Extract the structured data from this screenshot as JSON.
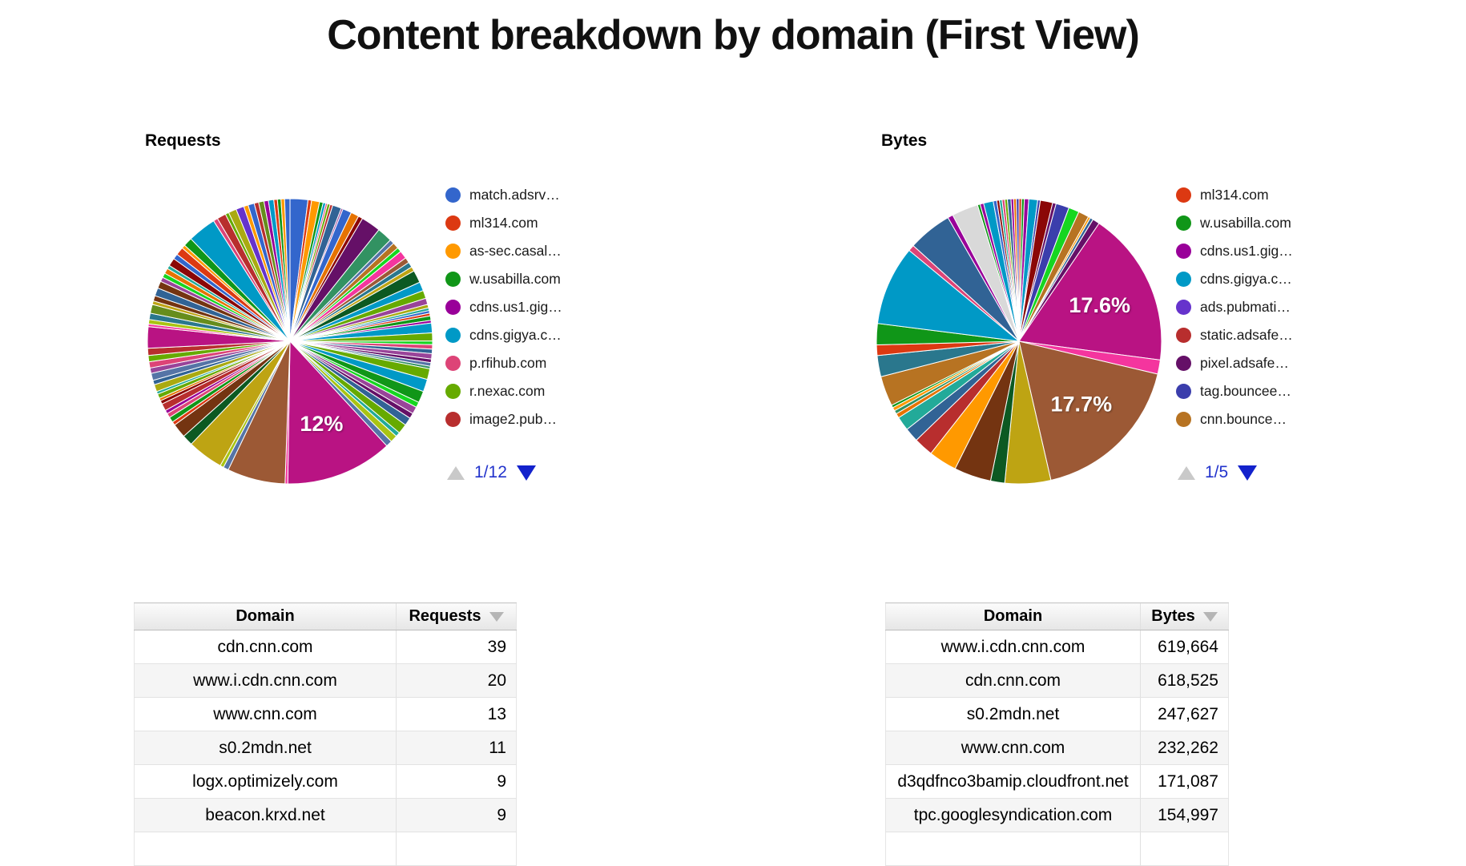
{
  "title": "Content breakdown by domain (First View)",
  "charts": [
    {
      "heading": "Requests",
      "page": "1/12",
      "legend": [
        {
          "label": "match.adsrv…",
          "color": "#3366cc"
        },
        {
          "label": "ml314.com",
          "color": "#dc3912"
        },
        {
          "label": "as-sec.casal…",
          "color": "#ff9900"
        },
        {
          "label": "w.usabilla.com",
          "color": "#109618"
        },
        {
          "label": "cdns.us1.gig…",
          "color": "#990099"
        },
        {
          "label": "cdns.gigya.c…",
          "color": "#0099c6"
        },
        {
          "label": "p.rfihub.com",
          "color": "#dd4477"
        },
        {
          "label": "r.nexac.com",
          "color": "#66aa00"
        },
        {
          "label": "image2.pub…",
          "color": "#b82e2e"
        }
      ],
      "slices": [
        {
          "c": "#3366cc",
          "v": 2.0
        },
        {
          "c": "#dc3912",
          "v": 0.4
        },
        {
          "c": "#ff9900",
          "v": 0.9
        },
        {
          "c": "#109618",
          "v": 0.4
        },
        {
          "c": "#0099c6",
          "v": 0.3
        },
        {
          "c": "#dd4477",
          "v": 0.2
        },
        {
          "c": "#66aa00",
          "v": 0.3
        },
        {
          "c": "#b82e2e",
          "v": 0.3
        },
        {
          "c": "#316395",
          "v": 1.0
        },
        {
          "c": "#994499",
          "v": 0.2
        },
        {
          "c": "#3366cc",
          "v": 1.0
        },
        {
          "c": "#e67300",
          "v": 0.9
        },
        {
          "c": "#8b0707",
          "v": 0.5
        },
        {
          "c": "#651067",
          "v": 2.2
        },
        {
          "c": "#329262",
          "v": 1.7
        },
        {
          "c": "#5574a6",
          "v": 0.5
        },
        {
          "c": "#b77322",
          "v": 0.7
        },
        {
          "c": "#16d620",
          "v": 0.5
        },
        {
          "c": "#f4359e",
          "v": 0.9
        },
        {
          "c": "#9c5935",
          "v": 0.6
        },
        {
          "c": "#2a778d",
          "v": 0.6
        },
        {
          "c": "#bea413",
          "v": 0.5
        },
        {
          "c": "#0c5922",
          "v": 1.4
        },
        {
          "c": "#0099c6",
          "v": 1.0
        },
        {
          "c": "#66aa00",
          "v": 0.9
        },
        {
          "c": "#994499",
          "v": 0.7
        },
        {
          "c": "#aaaa11",
          "v": 0.4
        },
        {
          "c": "#22aa99",
          "v": 0.3
        },
        {
          "c": "#3366cc",
          "v": 0.3
        },
        {
          "c": "#dc3912",
          "v": 0.3
        },
        {
          "c": "#109618",
          "v": 0.5
        },
        {
          "c": "#990099",
          "v": 0.3
        },
        {
          "c": "#0099c6",
          "v": 1.1
        },
        {
          "c": "#66aa00",
          "v": 0.9
        },
        {
          "c": "#16d620",
          "v": 0.4
        },
        {
          "c": "#dd4477",
          "v": 0.5
        },
        {
          "c": "#316395",
          "v": 0.5
        },
        {
          "c": "#994499",
          "v": 0.6
        },
        {
          "c": "#651067",
          "v": 0.4
        },
        {
          "c": "#5574a6",
          "v": 0.4
        },
        {
          "c": "#329262",
          "v": 0.3
        },
        {
          "c": "#66aa00",
          "v": 1.2
        },
        {
          "c": "#0099c6",
          "v": 1.4
        },
        {
          "c": "#109618",
          "v": 1.3
        },
        {
          "c": "#16d620",
          "v": 0.6
        },
        {
          "c": "#994499",
          "v": 0.8
        },
        {
          "c": "#651067",
          "v": 0.6
        },
        {
          "c": "#316395",
          "v": 0.9
        },
        {
          "c": "#66aa00",
          "v": 1.1
        },
        {
          "c": "#22aa99",
          "v": 0.5
        },
        {
          "c": "#a9c413",
          "v": 0.8
        },
        {
          "c": "#5574a6",
          "v": 0.7
        },
        {
          "c": "#b91383",
          "v": 12.0,
          "t": "12%"
        },
        {
          "c": "#f4359e",
          "v": 0.3
        },
        {
          "c": "#9c5935",
          "v": 6.5
        },
        {
          "c": "#5574a6",
          "v": 0.6
        },
        {
          "c": "#a9c413",
          "v": 0.4
        },
        {
          "c": "#bea413",
          "v": 4.0
        },
        {
          "c": "#0c5922",
          "v": 1.2
        },
        {
          "c": "#743411",
          "v": 1.6
        },
        {
          "c": "#dc3912",
          "v": 0.4
        },
        {
          "c": "#109618",
          "v": 0.6
        },
        {
          "c": "#dd4477",
          "v": 0.5
        },
        {
          "c": "#990099",
          "v": 0.4
        },
        {
          "c": "#b82e2e",
          "v": 0.8
        },
        {
          "c": "#8b0707",
          "v": 0.4
        },
        {
          "c": "#e67300",
          "v": 0.3
        },
        {
          "c": "#66aa00",
          "v": 0.5
        },
        {
          "c": "#22aa99",
          "v": 0.3
        },
        {
          "c": "#aaaa11",
          "v": 0.8
        },
        {
          "c": "#316395",
          "v": 0.5
        },
        {
          "c": "#5574a6",
          "v": 0.8
        },
        {
          "c": "#994499",
          "v": 0.6
        },
        {
          "c": "#dd4477",
          "v": 0.7
        },
        {
          "c": "#66aa00",
          "v": 0.7
        },
        {
          "c": "#b82e2e",
          "v": 0.8
        },
        {
          "c": "#b91383",
          "v": 2.4
        },
        {
          "c": "#f4359e",
          "v": 0.3
        },
        {
          "c": "#a9c413",
          "v": 0.5
        },
        {
          "c": "#2a778d",
          "v": 0.7
        },
        {
          "c": "#668d1c",
          "v": 1.0
        },
        {
          "c": "#bea413",
          "v": 0.4
        },
        {
          "c": "#743411",
          "v": 0.6
        },
        {
          "c": "#316395",
          "v": 0.9
        },
        {
          "c": "#743411",
          "v": 0.8
        },
        {
          "c": "#994499",
          "v": 0.5
        },
        {
          "c": "#16d620",
          "v": 0.5
        },
        {
          "c": "#e67300",
          "v": 0.6
        },
        {
          "c": "#22aa99",
          "v": 0.4
        },
        {
          "c": "#8b0707",
          "v": 0.9
        },
        {
          "c": "#3366cc",
          "v": 0.6
        },
        {
          "c": "#dc3912",
          "v": 0.9
        },
        {
          "c": "#ff9900",
          "v": 0.4
        },
        {
          "c": "#109618",
          "v": 1.0
        },
        {
          "c": "#0099c6",
          "v": 3.2
        },
        {
          "c": "#dd4477",
          "v": 0.5
        },
        {
          "c": "#b82e2e",
          "v": 1.0
        },
        {
          "c": "#66aa00",
          "v": 0.4
        },
        {
          "c": "#aaaa11",
          "v": 0.9
        },
        {
          "c": "#6633cc",
          "v": 0.9
        },
        {
          "c": "#ff9900",
          "v": 0.5
        },
        {
          "c": "#3366cc",
          "v": 0.7
        },
        {
          "c": "#b82e2e",
          "v": 0.5
        },
        {
          "c": "#668d1c",
          "v": 0.6
        },
        {
          "c": "#990099",
          "v": 0.5
        },
        {
          "c": "#0099c6",
          "v": 0.6
        },
        {
          "c": "#dc3912",
          "v": 0.4
        },
        {
          "c": "#109618",
          "v": 0.4
        },
        {
          "c": "#ff9900",
          "v": 0.4
        },
        {
          "c": "#3366cc",
          "v": 0.6
        }
      ]
    },
    {
      "heading": "Bytes",
      "page": "1/5",
      "legend": [
        {
          "label": "ml314.com",
          "color": "#dc3912"
        },
        {
          "label": "w.usabilla.com",
          "color": "#109618"
        },
        {
          "label": "cdns.us1.gig…",
          "color": "#990099"
        },
        {
          "label": "cdns.gigya.c…",
          "color": "#0099c6"
        },
        {
          "label": "ads.pubmati…",
          "color": "#6633cc"
        },
        {
          "label": "static.adsafe…",
          "color": "#b82e2e"
        },
        {
          "label": "pixel.adsafe…",
          "color": "#651067"
        },
        {
          "label": "tag.bouncee…",
          "color": "#3b3eac"
        },
        {
          "label": "cnn.bounce…",
          "color": "#b77322"
        }
      ],
      "slices": [
        {
          "c": "#dc3912",
          "v": 0.3
        },
        {
          "c": "#109618",
          "v": 0.3
        },
        {
          "c": "#990099",
          "v": 0.5
        },
        {
          "c": "#0099c6",
          "v": 1.0
        },
        {
          "c": "#3b3eac",
          "v": 0.3
        },
        {
          "c": "#8b0707",
          "v": 1.4
        },
        {
          "c": "#651067",
          "v": 0.4
        },
        {
          "c": "#3b3eac",
          "v": 1.5
        },
        {
          "c": "#16d620",
          "v": 1.2
        },
        {
          "c": "#b77322",
          "v": 1.2
        },
        {
          "c": "#ff9900",
          "v": 0.25
        },
        {
          "c": "#316395",
          "v": 0.35
        },
        {
          "c": "#651067",
          "v": 0.8
        },
        {
          "c": "#b91383",
          "v": 17.6,
          "t": "17.6%"
        },
        {
          "c": "#f4359e",
          "v": 1.6
        },
        {
          "c": "#9c5935",
          "v": 17.7,
          "t": "17.7%"
        },
        {
          "c": "#bea413",
          "v": 5.2
        },
        {
          "c": "#0c5922",
          "v": 1.6
        },
        {
          "c": "#743411",
          "v": 4.2
        },
        {
          "c": "#ff9900",
          "v": 3.2
        },
        {
          "c": "#b82e2e",
          "v": 2.2
        },
        {
          "c": "#316395",
          "v": 1.6
        },
        {
          "c": "#22aa99",
          "v": 1.6
        },
        {
          "c": "#e67300",
          "v": 0.5
        },
        {
          "c": "#329262",
          "v": 0.4
        },
        {
          "c": "#ff9900",
          "v": 0.4
        },
        {
          "c": "#109618",
          "v": 0.3
        },
        {
          "c": "#b77322",
          "v": 3.4
        },
        {
          "c": "#2a778d",
          "v": 2.4
        },
        {
          "c": "#dc3912",
          "v": 1.2
        },
        {
          "c": "#109618",
          "v": 2.4
        },
        {
          "c": "#0099c6",
          "v": 9.0
        },
        {
          "c": "#dd4477",
          "v": 0.7
        },
        {
          "c": "#316395",
          "v": 5.0
        },
        {
          "c": "#990099",
          "v": 0.6
        },
        {
          "c": "#d9d9d9",
          "v": 3.0
        },
        {
          "c": "#109618",
          "v": 0.3
        },
        {
          "c": "#990099",
          "v": 0.4
        },
        {
          "c": "#0099c6",
          "v": 1.1
        },
        {
          "c": "#3366cc",
          "v": 0.4
        },
        {
          "c": "#8b0707",
          "v": 0.3
        },
        {
          "c": "#22aa99",
          "v": 0.3
        },
        {
          "c": "#dd4477",
          "v": 0.3
        },
        {
          "c": "#66aa00",
          "v": 0.3
        },
        {
          "c": "#316395",
          "v": 0.4
        },
        {
          "c": "#990099",
          "v": 0.3
        },
        {
          "c": "#e67300",
          "v": 0.3
        },
        {
          "c": "#3b3eac",
          "v": 0.3
        }
      ]
    }
  ],
  "tables": [
    {
      "headers": {
        "domain": "Domain",
        "value": "Requests"
      },
      "rows": [
        {
          "domain": "cdn.cnn.com",
          "value": "39"
        },
        {
          "domain": "www.i.cdn.cnn.com",
          "value": "20"
        },
        {
          "domain": "www.cnn.com",
          "value": "13"
        },
        {
          "domain": "s0.2mdn.net",
          "value": "11"
        },
        {
          "domain": "logx.optimizely.com",
          "value": "9"
        },
        {
          "domain": "beacon.krxd.net",
          "value": "9"
        }
      ]
    },
    {
      "headers": {
        "domain": "Domain",
        "value": "Bytes"
      },
      "rows": [
        {
          "domain": "www.i.cdn.cnn.com",
          "value": "619,664"
        },
        {
          "domain": "cdn.cnn.com",
          "value": "618,525"
        },
        {
          "domain": "s0.2mdn.net",
          "value": "247,627"
        },
        {
          "domain": "www.cnn.com",
          "value": "232,262"
        },
        {
          "domain": "d3qdfnco3bamip.cloudfront.net",
          "value": "171,087"
        },
        {
          "domain": "tpc.googlesyndication.com",
          "value": "154,997"
        }
      ]
    }
  ],
  "chart_data": [
    {
      "type": "pie",
      "title": "Requests",
      "legend_position": "right",
      "legend_visible_entries": [
        "match.adsrv…",
        "ml314.com",
        "as-sec.casal…",
        "w.usabilla.com",
        "cdns.us1.gig…",
        "cdns.gigya.c…",
        "p.rfihub.com",
        "r.nexac.com",
        "image2.pub…"
      ],
      "legend_page": "1/12",
      "labeled_slices": [
        {
          "label": "12%",
          "value_pct": 12,
          "color": "#b91383"
        }
      ],
      "note": "many thin unlabeled slices; only 12% slice labeled"
    },
    {
      "type": "pie",
      "title": "Bytes",
      "legend_position": "right",
      "legend_visible_entries": [
        "ml314.com",
        "w.usabilla.com",
        "cdns.us1.gig…",
        "cdns.gigya.c…",
        "ads.pubmati…",
        "static.adsafe…",
        "pixel.adsafe…",
        "tag.bouncee…",
        "cnn.bounce…"
      ],
      "legend_page": "1/5",
      "labeled_slices": [
        {
          "label": "17.6%",
          "value_pct": 17.6,
          "color": "#b91383"
        },
        {
          "label": "17.7%",
          "value_pct": 17.7,
          "color": "#9c5935"
        }
      ],
      "note": "many thin unlabeled slices; only 17.6% and 17.7% slices labeled"
    },
    {
      "type": "table",
      "title": "Requests by domain",
      "columns": [
        "Domain",
        "Requests"
      ],
      "rows": [
        [
          "cdn.cnn.com",
          39
        ],
        [
          "www.i.cdn.cnn.com",
          20
        ],
        [
          "www.cnn.com",
          13
        ],
        [
          "s0.2mdn.net",
          11
        ],
        [
          "logx.optimizely.com",
          9
        ],
        [
          "beacon.krxd.net",
          9
        ]
      ],
      "sorted_by": "Requests descending"
    },
    {
      "type": "table",
      "title": "Bytes by domain",
      "columns": [
        "Domain",
        "Bytes"
      ],
      "rows": [
        [
          "www.i.cdn.cnn.com",
          619664
        ],
        [
          "cdn.cnn.com",
          618525
        ],
        [
          "s0.2mdn.net",
          247627
        ],
        [
          "www.cnn.com",
          232262
        ],
        [
          "d3qdfnco3bamip.cloudfront.net",
          171087
        ],
        [
          "tpc.googlesyndication.com",
          154997
        ]
      ],
      "sorted_by": "Bytes descending"
    }
  ]
}
